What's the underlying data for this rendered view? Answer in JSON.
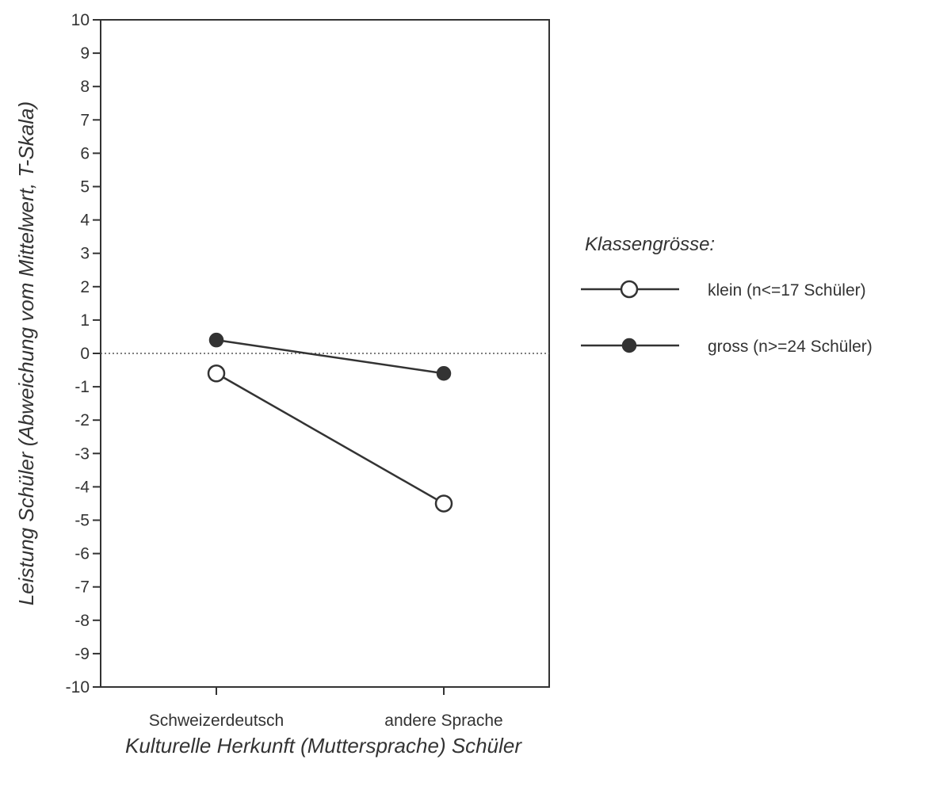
{
  "chart_data": {
    "type": "line",
    "xlabel": "Kulturelle Herkunft (Muttersprache) Schüler",
    "ylabel": "Leistung Schüler (Abweichung vom Mittelwert, T-Skala)",
    "categories": [
      "Schweizerdeutsch",
      "andere Sprache"
    ],
    "ylim": [
      -10,
      10
    ],
    "yticks": [
      10,
      9,
      8,
      7,
      6,
      5,
      4,
      3,
      2,
      1,
      0,
      -1,
      -2,
      -3,
      -4,
      -5,
      -6,
      -7,
      -8,
      -9,
      -10
    ],
    "reference_line": 0,
    "grid": false,
    "legend": {
      "title": "Klassengrösse:",
      "placement": "right"
    },
    "series": [
      {
        "name": "klein (n<=17 Schüler)",
        "values": [
          -0.6,
          -4.5
        ],
        "marker": "open-circle",
        "color": "#333333"
      },
      {
        "name": "gross (n>=24 Schüler)",
        "values": [
          0.4,
          -0.6
        ],
        "marker": "filled-circle",
        "color": "#333333"
      }
    ]
  }
}
